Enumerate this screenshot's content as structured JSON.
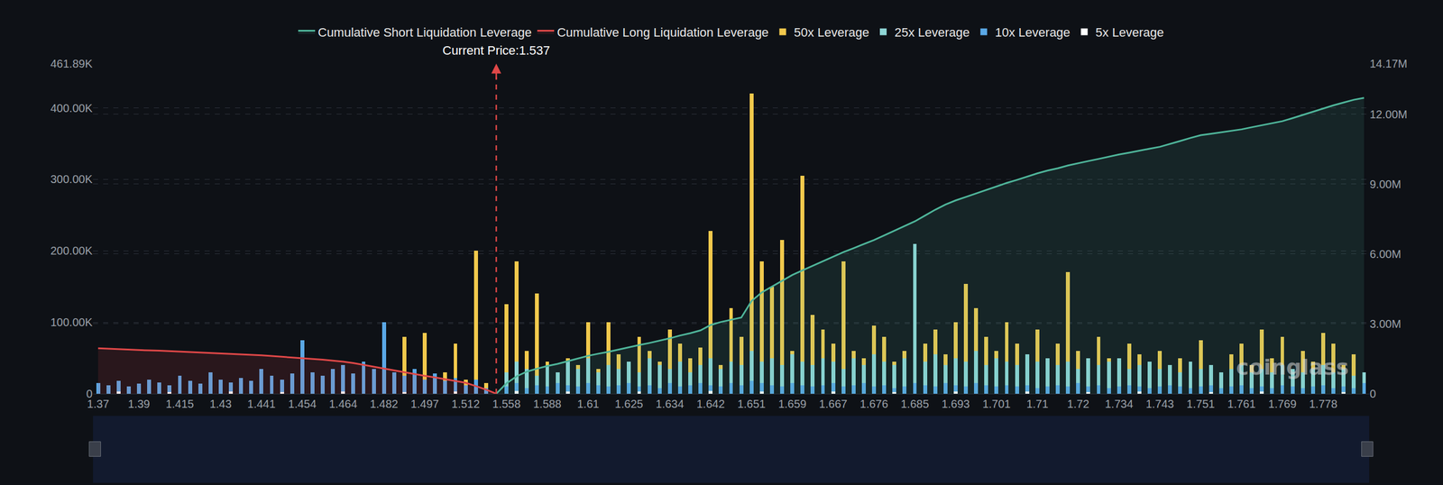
{
  "chart_data": {
    "type": "bar",
    "categories": [
      "1.37",
      null,
      null,
      null,
      "1.39",
      null,
      null,
      null,
      "1.415",
      null,
      null,
      null,
      "1.43",
      null,
      null,
      null,
      "1.441",
      null,
      null,
      null,
      "1.454",
      null,
      null,
      null,
      "1.464",
      null,
      null,
      null,
      "1.482",
      null,
      null,
      null,
      "1.497",
      null,
      null,
      null,
      "1.512",
      null,
      null,
      null,
      "1.558",
      null,
      null,
      null,
      "1.588",
      null,
      null,
      null,
      "1.61",
      null,
      null,
      null,
      "1.625",
      null,
      null,
      null,
      "1.634",
      null,
      null,
      null,
      "1.642",
      null,
      null,
      null,
      "1.651",
      null,
      null,
      null,
      "1.659",
      null,
      null,
      null,
      "1.667",
      null,
      null,
      null,
      "1.676",
      null,
      null,
      null,
      "1.685",
      null,
      null,
      null,
      "1.693",
      null,
      null,
      null,
      "1.701",
      null,
      null,
      null,
      "1.71",
      null,
      null,
      null,
      "1.72",
      null,
      null,
      null,
      "1.734",
      null,
      null,
      null,
      "1.743",
      null,
      null,
      null,
      "1.751",
      null,
      null,
      null,
      "1.761",
      null,
      null,
      null,
      "1.769",
      null,
      null,
      null,
      "1.778",
      null,
      null,
      null,
      null
    ],
    "series": [
      {
        "name": "Cumulative Short Liquidation Leverage",
        "type": "area",
        "axis": "y2",
        "color": "#4fb59a",
        "values": [
          null,
          null,
          null,
          null,
          null,
          null,
          null,
          null,
          null,
          null,
          null,
          null,
          null,
          null,
          null,
          null,
          null,
          null,
          null,
          null,
          null,
          null,
          null,
          null,
          null,
          null,
          null,
          null,
          null,
          null,
          null,
          null,
          null,
          null,
          null,
          null,
          null,
          null,
          null,
          0,
          450000,
          750000,
          950000,
          1080000,
          1190000,
          1280000,
          1400000,
          1520000,
          1630000,
          1720000,
          1800000,
          1900000,
          2000000,
          2090000,
          2180000,
          2280000,
          2380000,
          2500000,
          2600000,
          2720000,
          2950000,
          3080000,
          3180000,
          3270000,
          3980000,
          4350000,
          4600000,
          4850000,
          5100000,
          5300000,
          5500000,
          5700000,
          5900000,
          6080000,
          6250000,
          6420000,
          6600000,
          6800000,
          7000000,
          7200000,
          7400000,
          7650000,
          7900000,
          8120000,
          8300000,
          8450000,
          8600000,
          8760000,
          8900000,
          9050000,
          9180000,
          9320000,
          9460000,
          9580000,
          9680000,
          9800000,
          9900000,
          9990000,
          10080000,
          10180000,
          10270000,
          10350000,
          10440000,
          10520000,
          10600000,
          10720000,
          10850000,
          10980000,
          11100000,
          11160000,
          11220000,
          11290000,
          11350000,
          11440000,
          11530000,
          11610000,
          11700000,
          11830000,
          11970000,
          12100000,
          12250000,
          12380000,
          12500000,
          12620000,
          12700000
        ]
      },
      {
        "name": "Cumulative Long Liquidation Leverage",
        "type": "area",
        "axis": "y2",
        "color": "#e04848",
        "values": [
          1950000,
          1930000,
          1910000,
          1900000,
          1880000,
          1860000,
          1850000,
          1830000,
          1810000,
          1800000,
          1780000,
          1760000,
          1730000,
          1710000,
          1690000,
          1670000,
          1650000,
          1620000,
          1590000,
          1560000,
          1530000,
          1490000,
          1460000,
          1420000,
          1380000,
          1320000,
          1240000,
          1160000,
          1080000,
          1000000,
          930000,
          850000,
          770000,
          700000,
          620000,
          550000,
          470000,
          330000,
          180000,
          0,
          null,
          null,
          null,
          null,
          null,
          null,
          null,
          null,
          null,
          null,
          null,
          null,
          null,
          null,
          null,
          null,
          null,
          null,
          null,
          null,
          null,
          null,
          null,
          null,
          null,
          null,
          null,
          null,
          null,
          null,
          null,
          null,
          null,
          null,
          null,
          null,
          null,
          null,
          null,
          null,
          null,
          null,
          null,
          null,
          null,
          null,
          null,
          null,
          null,
          null,
          null,
          null,
          null,
          null,
          null,
          null,
          null,
          null,
          null,
          null,
          null,
          null,
          null,
          null,
          null,
          null,
          null,
          null,
          null,
          null,
          null,
          null,
          null,
          null,
          null,
          null,
          null,
          null,
          null,
          null,
          null,
          null,
          null,
          null,
          null
        ]
      },
      {
        "name": "50x Leverage",
        "type": "bar",
        "color": "#f2c94c",
        "values": [
          0,
          0,
          0,
          0,
          0,
          0,
          0,
          0,
          0,
          0,
          0,
          0,
          0,
          0,
          0,
          0,
          0,
          0,
          0,
          0,
          0,
          0,
          0,
          0,
          0,
          0,
          6000,
          0,
          0,
          10000,
          80000,
          0,
          85000,
          0,
          30000,
          70000,
          20000,
          200000,
          15000,
          0,
          125000,
          185000,
          60000,
          140000,
          45000,
          30000,
          50000,
          40000,
          100000,
          35000,
          100000,
          55000,
          40000,
          80000,
          60000,
          45000,
          90000,
          70000,
          50000,
          65000,
          228000,
          40000,
          120000,
          80000,
          420000,
          185000,
          150000,
          215000,
          60000,
          305000,
          110000,
          90000,
          70000,
          185000,
          60000,
          50000,
          95000,
          80000,
          45000,
          60000,
          40000,
          70000,
          90000,
          55000,
          100000,
          154000,
          120000,
          80000,
          60000,
          100000,
          70000,
          55000,
          90000,
          50000,
          70000,
          170000,
          60000,
          40000,
          80000,
          50000,
          45000,
          70000,
          55000,
          30000,
          60000,
          40000,
          50000,
          35000,
          75000,
          40000,
          30000,
          55000,
          70000,
          40000,
          90000,
          50000,
          80000,
          35000,
          60000,
          45000,
          85000,
          70000,
          40000,
          55000,
          30000
        ]
      },
      {
        "name": "25x Leverage",
        "type": "bar",
        "color": "#8fd6d6",
        "values": [
          8000,
          6000,
          10000,
          5000,
          7000,
          12000,
          9000,
          6000,
          8000,
          10000,
          7000,
          9000,
          11000,
          6000,
          8000,
          10000,
          12000,
          7000,
          9000,
          11000,
          13000,
          10000,
          8000,
          12000,
          9000,
          14000,
          11000,
          10000,
          12000,
          9000,
          8000,
          10000,
          7000,
          9000,
          6000,
          8000,
          5000,
          10000,
          4000,
          0,
          30000,
          45000,
          35000,
          25000,
          40000,
          30000,
          45000,
          35000,
          50000,
          30000,
          40000,
          35000,
          45000,
          30000,
          50000,
          40000,
          35000,
          45000,
          30000,
          40000,
          50000,
          35000,
          45000,
          40000,
          60000,
          45000,
          50000,
          40000,
          55000,
          45000,
          40000,
          50000,
          45000,
          35000,
          50000,
          40000,
          55000,
          45000,
          40000,
          50000,
          210000,
          45000,
          55000,
          40000,
          50000,
          45000,
          60000,
          40000,
          50000,
          45000,
          40000,
          55000,
          45000,
          50000,
          40000,
          45000,
          35000,
          50000,
          40000,
          45000,
          50000,
          35000,
          40000,
          45000,
          35000,
          40000,
          30000,
          45000,
          35000,
          40000,
          30000,
          35000,
          40000,
          30000,
          35000,
          30000,
          40000,
          35000,
          30000,
          35000,
          40000,
          30000,
          35000,
          25000,
          30000
        ]
      },
      {
        "name": "10x Leverage",
        "type": "bar",
        "color": "#5aa8e6",
        "values": [
          15000,
          12000,
          18000,
          10000,
          14000,
          20000,
          16000,
          12000,
          25000,
          18000,
          14000,
          30000,
          20000,
          16000,
          22000,
          18000,
          35000,
          25000,
          20000,
          28000,
          75000,
          30000,
          25000,
          35000,
          40000,
          28000,
          45000,
          35000,
          100000,
          30000,
          25000,
          35000,
          20000,
          28000,
          18000,
          22000,
          12000,
          20000,
          8000,
          0,
          10000,
          15000,
          8000,
          12000,
          10000,
          15000,
          12000,
          10000,
          15000,
          12000,
          10000,
          12000,
          15000,
          10000,
          12000,
          8000,
          15000,
          10000,
          12000,
          15000,
          12000,
          10000,
          15000,
          12000,
          18000,
          15000,
          12000,
          10000,
          15000,
          12000,
          10000,
          12000,
          15000,
          10000,
          12000,
          15000,
          10000,
          12000,
          8000,
          10000,
          15000,
          12000,
          10000,
          15000,
          12000,
          10000,
          15000,
          12000,
          10000,
          12000,
          10000,
          12000,
          8000,
          10000,
          12000,
          10000,
          15000,
          10000,
          12000,
          8000,
          10000,
          12000,
          10000,
          8000,
          10000,
          12000,
          10000,
          8000,
          10000,
          12000,
          8000,
          10000,
          12000,
          8000,
          10000,
          8000,
          12000,
          10000,
          8000,
          10000,
          12000,
          8000,
          10000,
          8000,
          15000
        ]
      },
      {
        "name": "5x Leverage",
        "type": "bar",
        "color": "#ffffff",
        "values": [
          0,
          0,
          3000,
          0,
          0,
          0,
          0,
          2000,
          0,
          0,
          0,
          0,
          0,
          3000,
          0,
          0,
          0,
          0,
          2000,
          0,
          0,
          0,
          0,
          0,
          3000,
          0,
          0,
          0,
          0,
          0,
          2000,
          0,
          0,
          0,
          0,
          3000,
          0,
          0,
          0,
          0,
          0,
          4000,
          0,
          0,
          0,
          0,
          3000,
          0,
          0,
          0,
          0,
          0,
          0,
          3000,
          0,
          0,
          0,
          0,
          0,
          0,
          4000,
          0,
          0,
          0,
          0,
          3000,
          0,
          0,
          0,
          0,
          0,
          0,
          3000,
          0,
          0,
          0,
          0,
          0,
          2000,
          0,
          0,
          0,
          0,
          0,
          3000,
          0,
          0,
          0,
          0,
          0,
          0,
          3000,
          0,
          0,
          0,
          0,
          0,
          2000,
          0,
          0,
          0,
          0,
          3000,
          0,
          0,
          0,
          0,
          0,
          0,
          2000,
          0,
          0,
          0,
          0,
          3000,
          0,
          0,
          0,
          0,
          0,
          0,
          0,
          2000,
          0,
          0
        ]
      }
    ],
    "ylim": [
      0,
      461890
    ],
    "yticks": [
      0,
      {
        "value": 100000,
        "label": "100.00K"
      },
      {
        "value": 200000,
        "label": "200.00K"
      },
      {
        "value": 300000,
        "label": "300.00K"
      },
      {
        "value": 400000,
        "label": "400.00K"
      },
      {
        "value": 461890,
        "label": "461.89K"
      }
    ],
    "y2lim": [
      0,
      14170000
    ],
    "y2ticks": [
      0,
      {
        "value": 3000000,
        "label": "3.00M"
      },
      {
        "value": 6000000,
        "label": "6.00M"
      },
      {
        "value": 9000000,
        "label": "9.00M"
      },
      {
        "value": 12000000,
        "label": "12.00M"
      },
      {
        "value": 14170000,
        "label": "14.17M"
      }
    ],
    "stacked": false,
    "grid": true,
    "legend": "top",
    "annotations": [
      {
        "text": "Current Price:1.537",
        "x": 39,
        "color": "#e04848",
        "line_style": "dashed"
      }
    ],
    "watermark": "coinglass"
  }
}
